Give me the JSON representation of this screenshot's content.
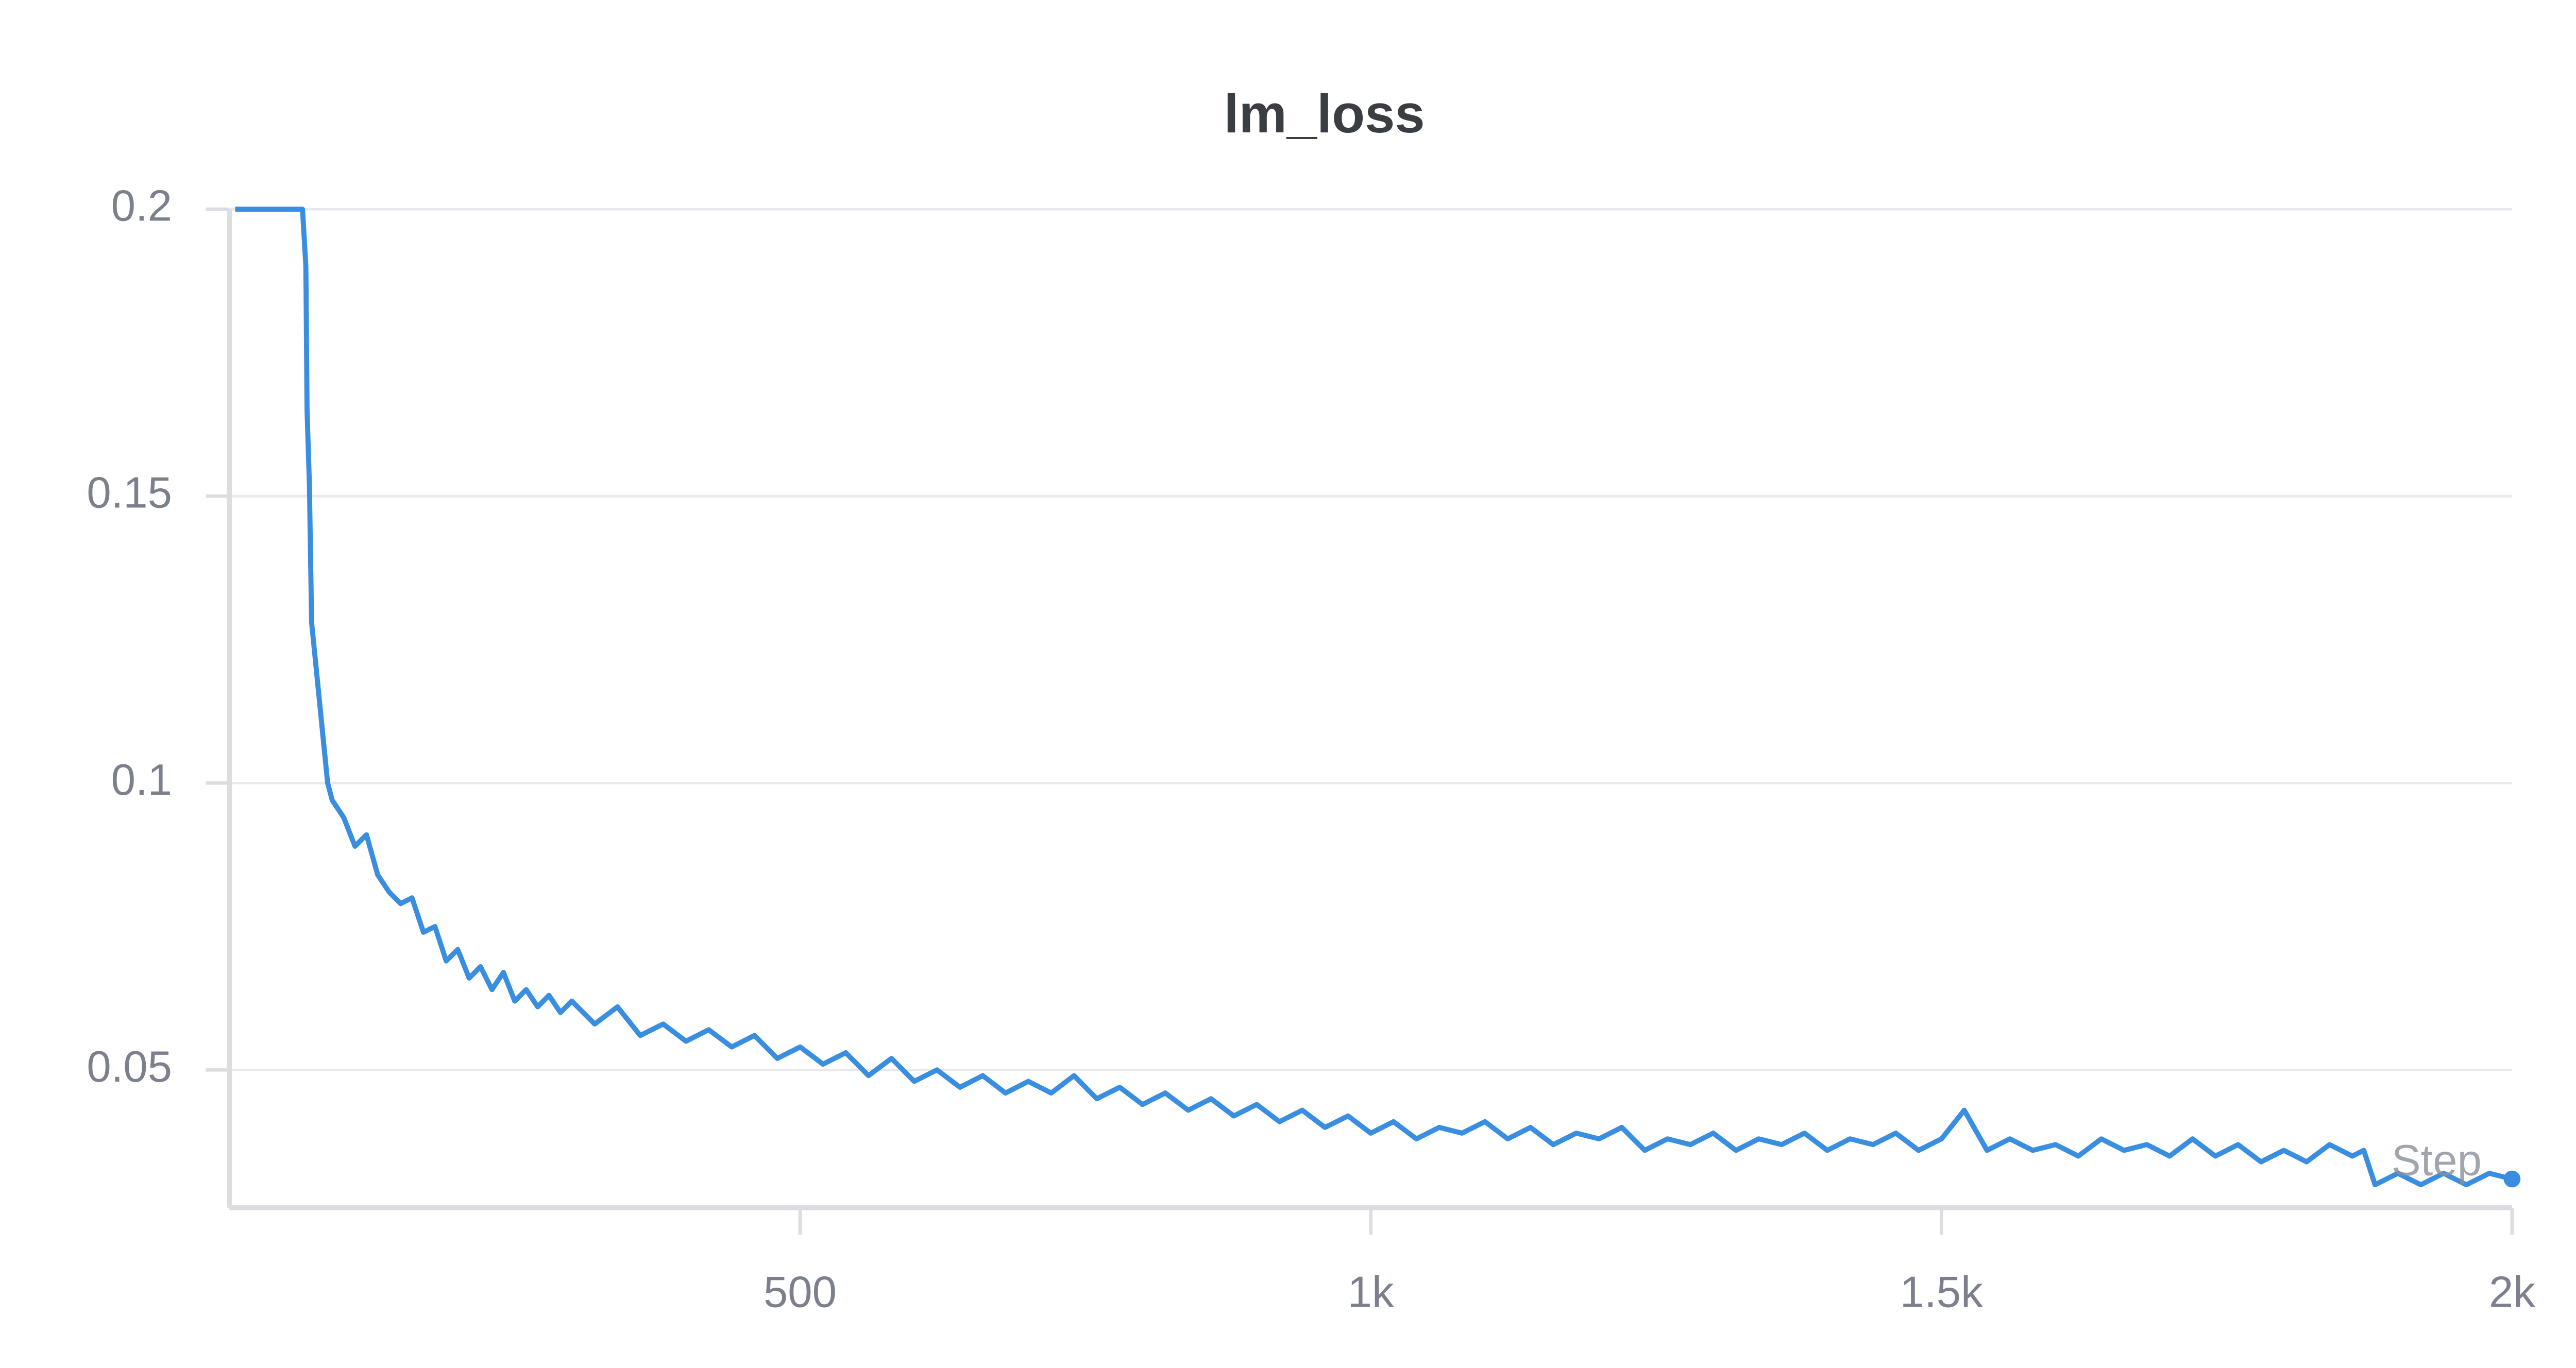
{
  "chart_data": {
    "type": "line",
    "title": "lm_loss",
    "x_label": "Step",
    "xlim": [
      0,
      2000
    ],
    "ylim": [
      0.026,
      0.2
    ],
    "xticks": [
      500,
      {
        "value": 1000,
        "label": "1k"
      },
      {
        "value": 1500,
        "label": "1.5k"
      },
      {
        "value": 2000,
        "label": "2k"
      }
    ],
    "yticks": [
      0.05,
      0.1,
      0.15,
      0.2
    ],
    "grid": true,
    "x": [
      5,
      64,
      67,
      68,
      70,
      72,
      77,
      81,
      86,
      90,
      100,
      110,
      120,
      130,
      140,
      150,
      160,
      170,
      180,
      190,
      200,
      210,
      220,
      230,
      240,
      250,
      260,
      270,
      280,
      290,
      300,
      320,
      340,
      360,
      380,
      400,
      420,
      440,
      460,
      480,
      500,
      520,
      540,
      560,
      580,
      600,
      620,
      640,
      660,
      680,
      700,
      720,
      740,
      760,
      780,
      800,
      820,
      840,
      860,
      880,
      900,
      920,
      940,
      960,
      980,
      1000,
      1020,
      1040,
      1060,
      1080,
      1100,
      1120,
      1140,
      1160,
      1180,
      1200,
      1220,
      1240,
      1260,
      1280,
      1300,
      1320,
      1340,
      1360,
      1380,
      1400,
      1420,
      1440,
      1460,
      1480,
      1500,
      1520,
      1540,
      1560,
      1580,
      1600,
      1620,
      1640,
      1660,
      1680,
      1700,
      1720,
      1740,
      1760,
      1780,
      1800,
      1820,
      1840,
      1860,
      1870,
      1880,
      1900,
      1920,
      1940,
      1960,
      1980,
      2000
    ],
    "series": [
      {
        "name": "lm_loss",
        "color": "#3a8ee0",
        "values": [
          0.2,
          0.2,
          0.19,
          0.165,
          0.152,
          0.128,
          0.118,
          0.11,
          0.1,
          0.097,
          0.094,
          0.089,
          0.091,
          0.084,
          0.081,
          0.079,
          0.08,
          0.074,
          0.075,
          0.069,
          0.071,
          0.066,
          0.068,
          0.064,
          0.067,
          0.062,
          0.064,
          0.061,
          0.063,
          0.06,
          0.062,
          0.058,
          0.061,
          0.056,
          0.058,
          0.055,
          0.057,
          0.054,
          0.056,
          0.052,
          0.054,
          0.051,
          0.053,
          0.049,
          0.052,
          0.048,
          0.05,
          0.047,
          0.049,
          0.046,
          0.048,
          0.046,
          0.049,
          0.045,
          0.047,
          0.044,
          0.046,
          0.043,
          0.045,
          0.042,
          0.044,
          0.041,
          0.043,
          0.04,
          0.042,
          0.039,
          0.041,
          0.038,
          0.04,
          0.039,
          0.041,
          0.038,
          0.04,
          0.037,
          0.039,
          0.038,
          0.04,
          0.036,
          0.038,
          0.037,
          0.039,
          0.036,
          0.038,
          0.037,
          0.039,
          0.036,
          0.038,
          0.037,
          0.039,
          0.036,
          0.038,
          0.043,
          0.036,
          0.038,
          0.036,
          0.037,
          0.035,
          0.038,
          0.036,
          0.037,
          0.035,
          0.038,
          0.035,
          0.037,
          0.034,
          0.036,
          0.034,
          0.037,
          0.035,
          0.036,
          0.03,
          0.032,
          0.03,
          0.032,
          0.03,
          0.032,
          0.031
        ]
      }
    ]
  }
}
